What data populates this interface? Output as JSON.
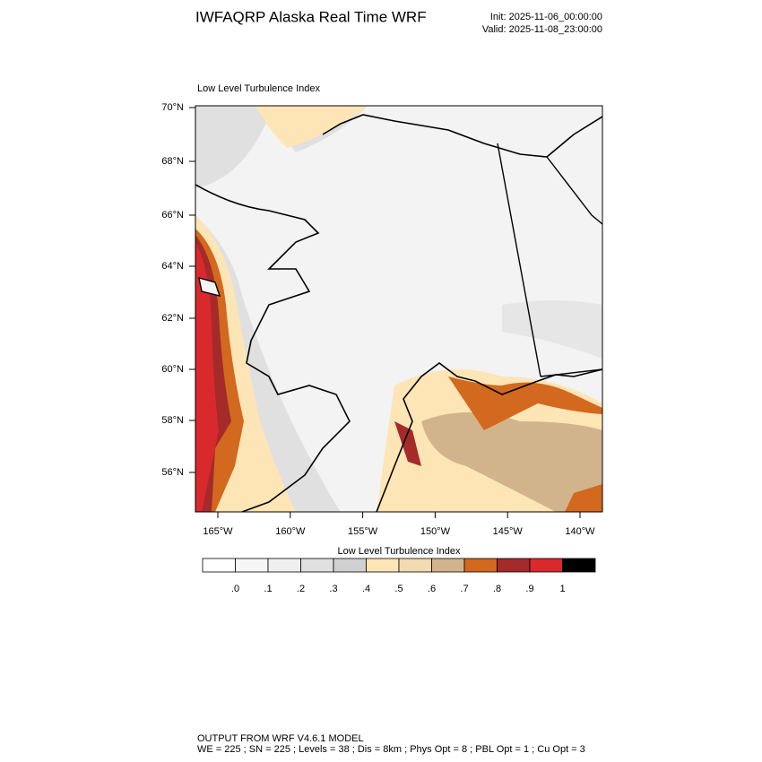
{
  "header": {
    "title": "IWFAQRP Alaska Real Time WRF",
    "init": "Init: 2025-11-06_00:00:00",
    "valid": "Valid: 2025-11-08_23:00:00"
  },
  "map": {
    "subtitle": "Low Level Turbulence Index",
    "lat_labels": [
      "70°N",
      "68°N",
      "66°N",
      "64°N",
      "62°N",
      "60°N",
      "58°N",
      "56°N"
    ],
    "lon_labels": [
      "165°W",
      "160°W",
      "155°W",
      "150°W",
      "145°W",
      "140°W"
    ]
  },
  "colorbar": {
    "title": "Low Level Turbulence Index",
    "colors": [
      "#ffffff",
      "#f7f7f7",
      "#efefef",
      "#e0e0e0",
      "#d0d0d0",
      "#fee5b6",
      "#f3dab0",
      "#d2b48c",
      "#d2691e",
      "#a52a2a",
      "#d9292d",
      "#000000"
    ],
    "labels": [
      ".0",
      ".1",
      ".2",
      ".3",
      ".4",
      ".5",
      ".6",
      ".7",
      ".8",
      ".9",
      "1"
    ]
  },
  "footer": {
    "line1": "OUTPUT FROM WRF V4.6.1 MODEL",
    "line2": "WE = 225 ; SN = 225 ; Levels = 38 ; Dis = 8km ; Phys Opt = 8 ; PBL Opt = 1 ; Cu Opt = 3"
  }
}
